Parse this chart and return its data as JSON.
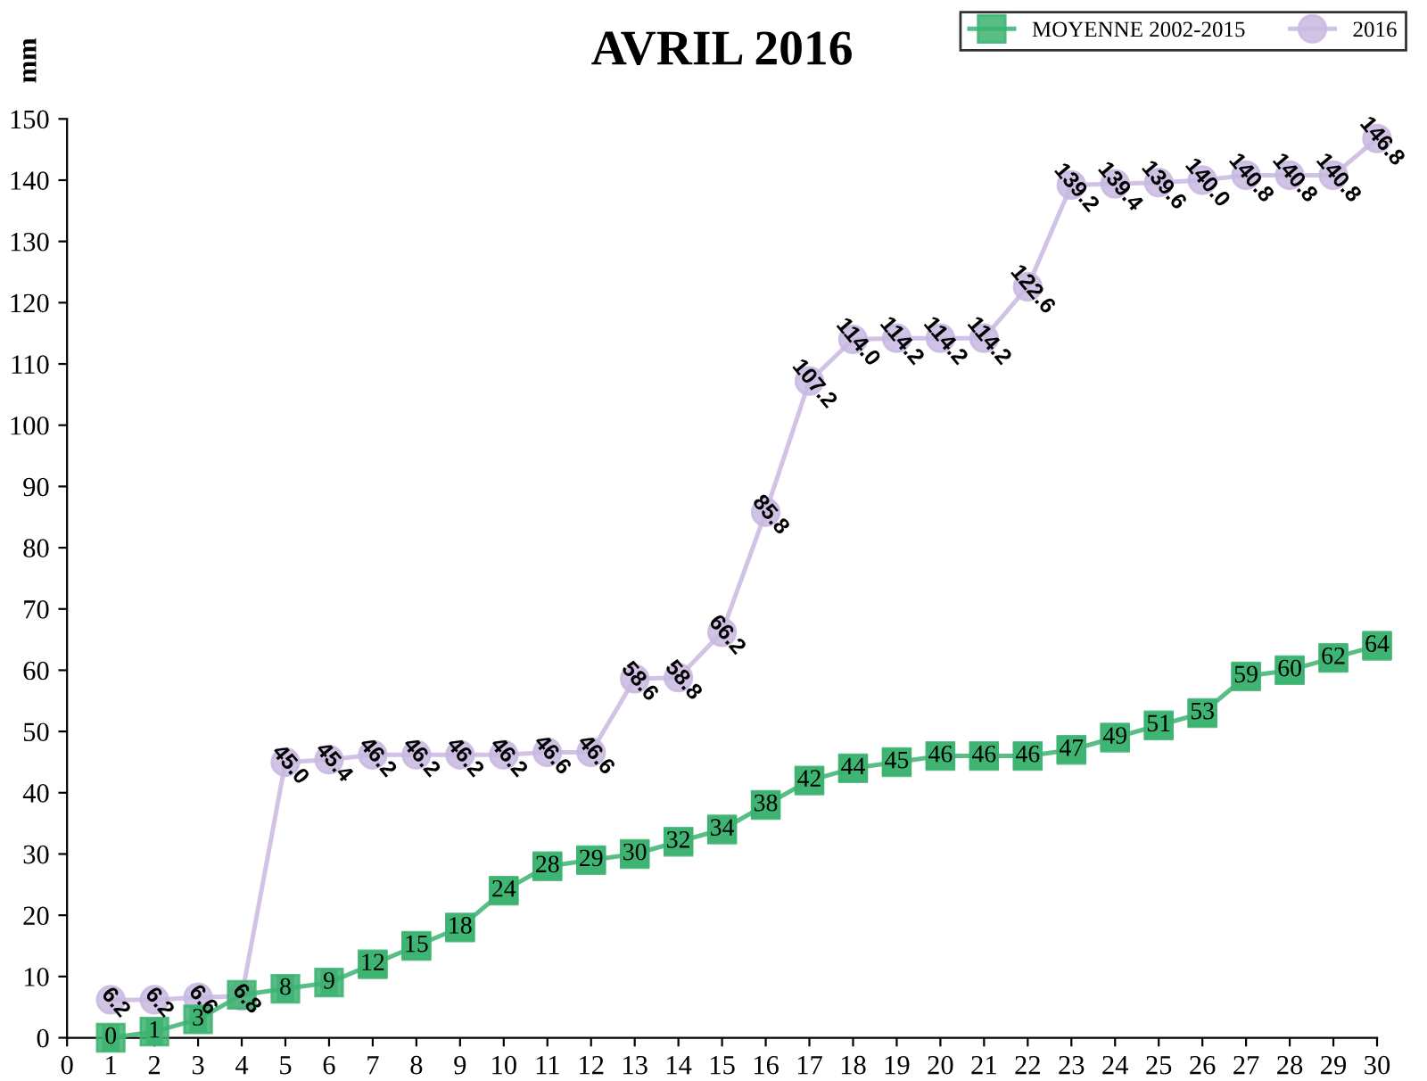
{
  "chart_data": {
    "type": "line",
    "title": "AVRIL 2016",
    "ylabel": "mm",
    "x": [
      1,
      2,
      3,
      4,
      5,
      6,
      7,
      8,
      9,
      10,
      11,
      12,
      13,
      14,
      15,
      16,
      17,
      18,
      19,
      20,
      21,
      22,
      23,
      24,
      25,
      26,
      27,
      28,
      29,
      30
    ],
    "series": [
      {
        "name": "MOYENNE 2002-2015",
        "color": "#3cb371",
        "marker": "square",
        "values": [
          0,
          1,
          3,
          7,
          8,
          9,
          12,
          15,
          18,
          24,
          28,
          29,
          30,
          32,
          34,
          38,
          42,
          44,
          45,
          46,
          46,
          46,
          47,
          49,
          51,
          53,
          59,
          60,
          62,
          64
        ],
        "value_labels": [
          "0",
          "1",
          "3",
          null,
          "8",
          "9",
          "12",
          "15",
          "18",
          "24",
          "28",
          "29",
          "30",
          "32",
          "34",
          "38",
          "42",
          "44",
          "45",
          "46",
          "46",
          "46",
          "47",
          "49",
          "51",
          "53",
          "59",
          "60",
          "62",
          "64"
        ]
      },
      {
        "name": "2016",
        "color": "#c8b8e0",
        "marker": "circle",
        "values": [
          6.2,
          6.2,
          6.6,
          6.8,
          45.0,
          45.4,
          46.2,
          46.2,
          46.2,
          46.2,
          46.6,
          46.6,
          58.6,
          58.8,
          66.2,
          85.8,
          107.2,
          114.0,
          114.2,
          114.2,
          114.2,
          122.6,
          139.2,
          139.4,
          139.6,
          140.0,
          140.8,
          140.8,
          140.8,
          146.8
        ],
        "value_labels": [
          "6.2",
          "6.2",
          "6.6",
          "6.8",
          "45.0",
          "45.4",
          "46.2",
          "46.2",
          "46.2",
          "46.2",
          "46.6",
          "46.6",
          "58.6",
          "58.8",
          "66.2",
          "85.8",
          "107.2",
          "114.0",
          "114.2",
          "114.2",
          "114.2",
          "122.6",
          "139.2",
          "139.4",
          "139.6",
          "140.0",
          "140.8",
          "140.8",
          "140.8",
          "146.8"
        ]
      }
    ],
    "xlim": [
      0,
      30
    ],
    "xticks": [
      0,
      1,
      2,
      3,
      4,
      5,
      6,
      7,
      8,
      9,
      10,
      11,
      12,
      13,
      14,
      15,
      16,
      17,
      18,
      19,
      20,
      21,
      22,
      23,
      24,
      25,
      26,
      27,
      28,
      29,
      30
    ],
    "ylim": [
      0,
      150
    ],
    "yticks": [
      0,
      10,
      20,
      30,
      40,
      50,
      60,
      70,
      80,
      90,
      100,
      110,
      120,
      130,
      140,
      150
    ],
    "grid": false,
    "legend": "top right",
    "line_style": "solid"
  }
}
